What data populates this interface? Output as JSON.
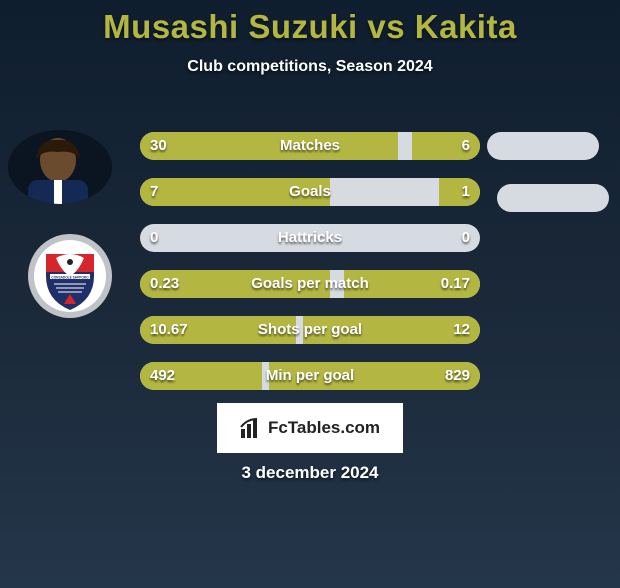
{
  "title": "Musashi Suzuki vs Kakita",
  "subtitle": "Club competitions, Season 2024",
  "colors": {
    "accent": "#b3b742",
    "track": "#d6dbe1",
    "text": "#ffffff",
    "bg_top": "#0f1e2f",
    "bg_bottom": "#24364a"
  },
  "rows": [
    {
      "label": "Matches",
      "left": "30",
      "right": "6",
      "left_pct": 76,
      "right_pct": 20
    },
    {
      "label": "Goals",
      "left": "7",
      "right": "1",
      "left_pct": 56,
      "right_pct": 12
    },
    {
      "label": "Hattricks",
      "left": "0",
      "right": "0",
      "left_pct": 0,
      "right_pct": 0
    },
    {
      "label": "Goals per match",
      "left": "0.23",
      "right": "0.17",
      "left_pct": 56,
      "right_pct": 40
    },
    {
      "label": "Shots per goal",
      "left": "10.67",
      "right": "12",
      "left_pct": 46,
      "right_pct": 52
    },
    {
      "label": "Min per goal",
      "left": "492",
      "right": "829",
      "left_pct": 36,
      "right_pct": 62
    }
  ],
  "watermark": "FcTables.com",
  "date": "3 december 2024",
  "badge": {
    "ring": "#bfc3c8",
    "shield_top": "#d7252c",
    "shield_bottom": "#1f2f6a",
    "text": "CONSADOLE SAPPORO"
  }
}
